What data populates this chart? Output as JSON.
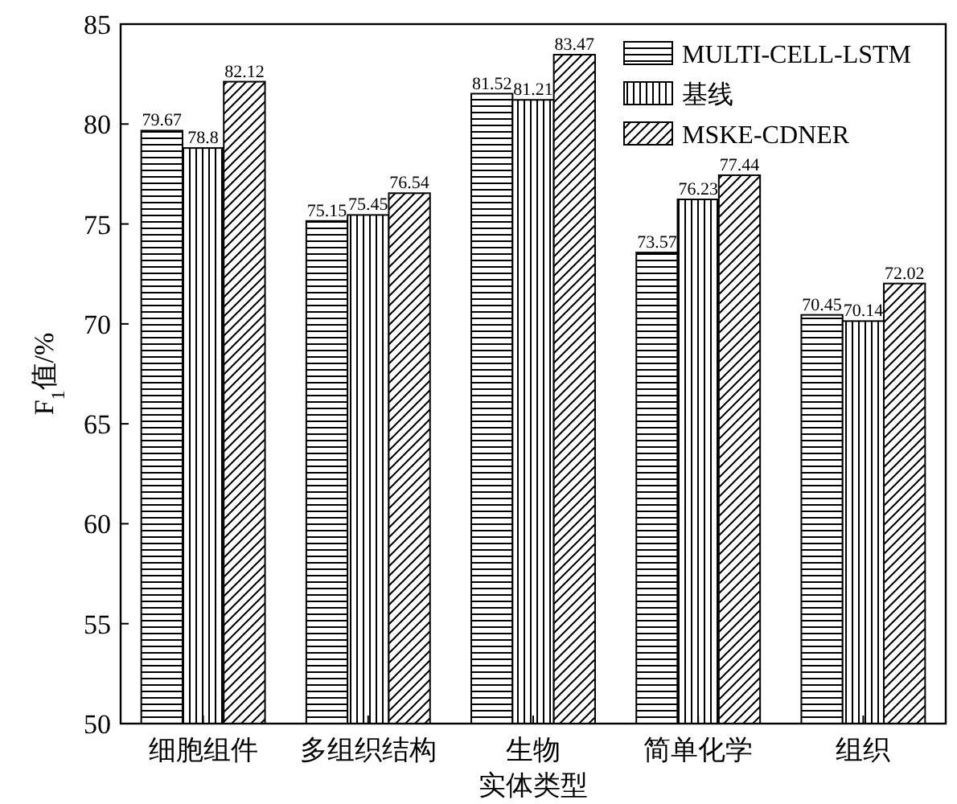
{
  "chart_data": {
    "type": "bar",
    "xlabel": "实体类型",
    "ylabel": "F$_{1}$值/%",
    "categories": [
      "细胞组件",
      "多组织结构",
      "生物",
      "简单化学",
      "组织"
    ],
    "series": [
      {
        "name": "MULTI-CELL-LSTM",
        "color": "#000000",
        "values": [
          79.67,
          75.15,
          81.52,
          73.57,
          70.45
        ]
      },
      {
        "name": "基线",
        "color": "#000000",
        "values": [
          78.8,
          75.45,
          81.21,
          76.23,
          70.14
        ]
      },
      {
        "name": "MSKE-CDNER",
        "color": "#000000",
        "values": [
          82.12,
          76.54,
          83.47,
          77.44,
          72.02
        ]
      }
    ],
    "ylim": [
      50,
      85
    ],
    "yticks": [
      50,
      55,
      60,
      65,
      70,
      75,
      80,
      85
    ],
    "data_labels": true,
    "legend": "top right",
    "grid": false
  }
}
